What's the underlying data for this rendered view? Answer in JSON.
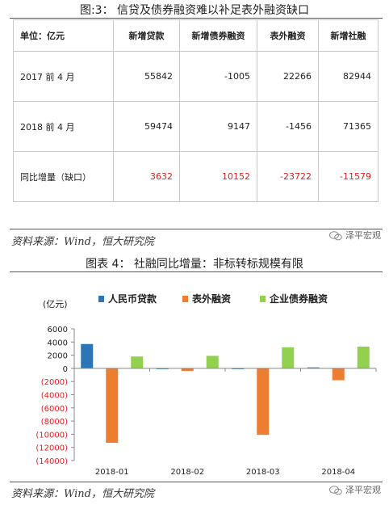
{
  "figure3": {
    "title": "图:3：  信贷及债券融资难以补足表外融资缺口",
    "header": [
      "单位：亿元",
      "新增贷款",
      "新增债券融资",
      "表外融资",
      "新增社融"
    ],
    "rows": [
      {
        "label": "2017 前 4 月",
        "values": [
          "55842",
          "-1005",
          "22266",
          "82944"
        ]
      },
      {
        "label": "2018 前 4 月",
        "values": [
          "59474",
          "9147",
          "-1456",
          "71365"
        ]
      },
      {
        "label": "同比增量（缺口）",
        "values": [
          "3632",
          "10152",
          "-23722",
          "-11579"
        ]
      }
    ],
    "source": "资料来源：Wind，恒大研究院",
    "watermark": "泽平宏观"
  },
  "figure4": {
    "title": "图表 4：  社融同比增量：非标转标规模有限",
    "source": "资料来源：Wind，恒大研究院",
    "watermark": "泽平宏观"
  },
  "chart_data": {
    "type": "bar",
    "ylabel": "(亿元)",
    "categories": [
      "2018-01",
      "2018-02",
      "2018-03",
      "2018-04"
    ],
    "series": [
      {
        "name": "人民币贷款",
        "color": "#2e75b6",
        "values": [
          3700,
          -50,
          -80,
          150
        ]
      },
      {
        "name": "表外融资",
        "color": "#ed7d31",
        "values": [
          -11300,
          -400,
          -10100,
          -1800
        ]
      },
      {
        "name": "企业债券融资",
        "color": "#92d050",
        "values": [
          1800,
          1900,
          3200,
          3300
        ]
      }
    ],
    "ylim": [
      -14000,
      6000
    ],
    "yticks": [
      6000,
      4000,
      2000,
      0,
      -2000,
      -4000,
      -6000,
      -8000,
      -10000,
      -12000,
      -14000
    ],
    "ytick_labels": [
      "6000",
      "4000",
      "2000",
      "0",
      "(2000)",
      "(4000)",
      "(6000)",
      "(8000)",
      "(10000)",
      "(12000)",
      "(14000)"
    ],
    "negative_tick_color": "#e02020",
    "legend_position": "top",
    "grid": false
  }
}
